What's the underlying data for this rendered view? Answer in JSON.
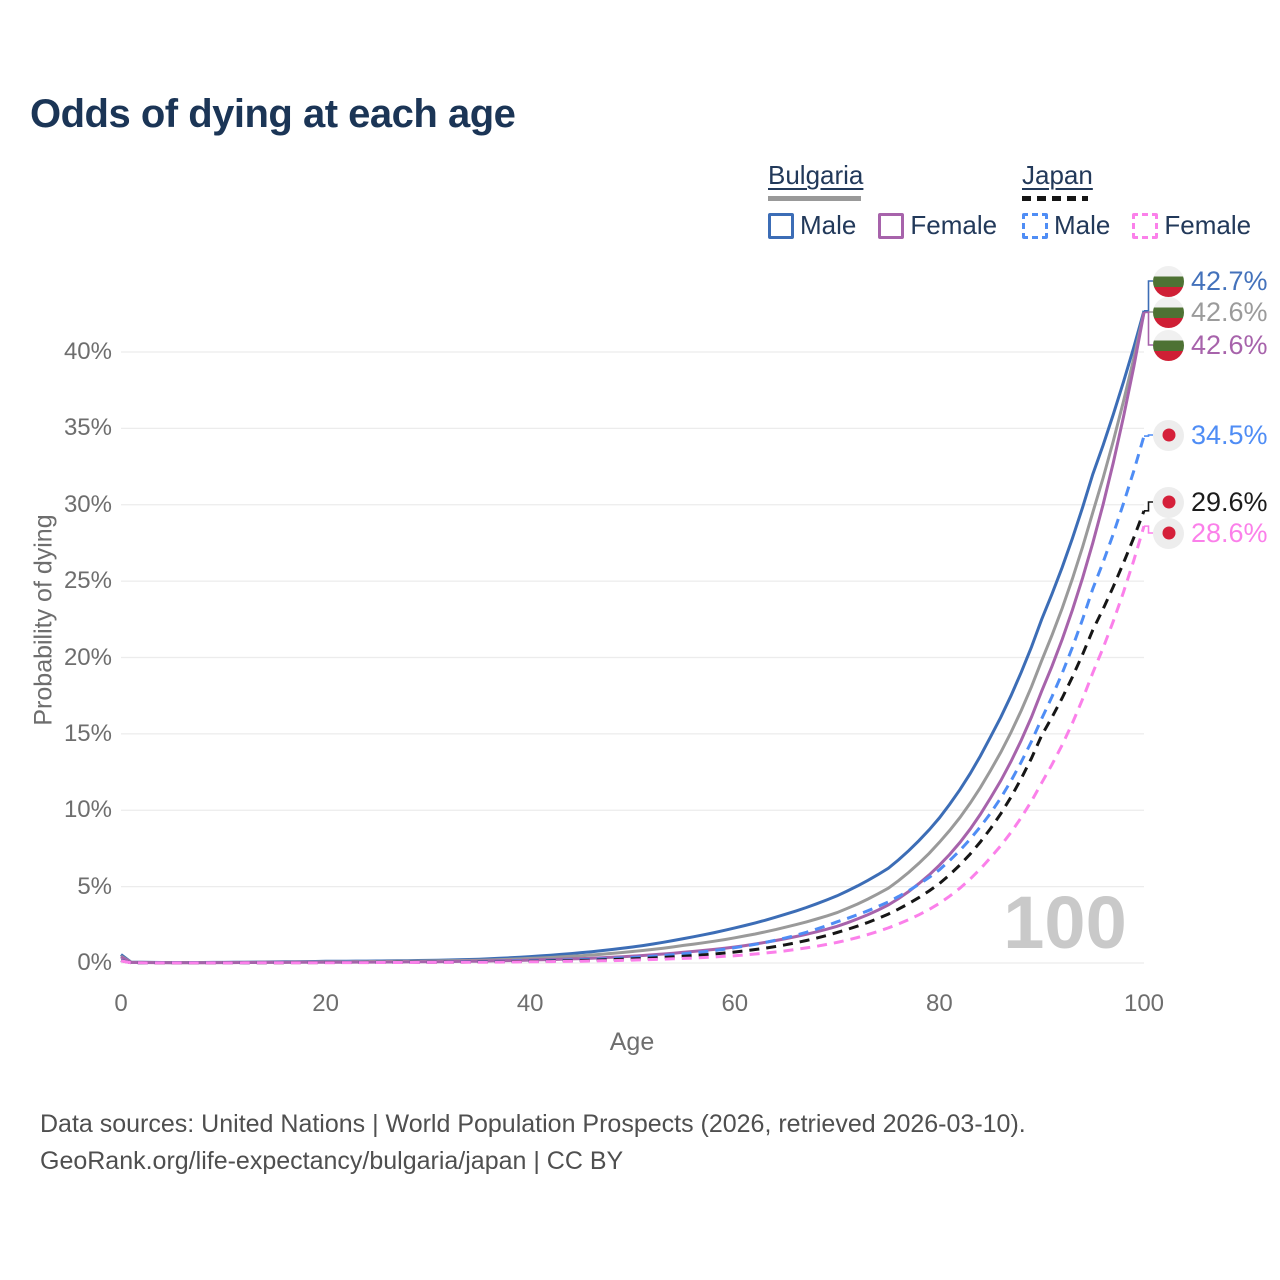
{
  "title": "Odds of dying at each age",
  "legend": {
    "groups": [
      {
        "label": "Bulgaria",
        "line_style": "solid",
        "swatch_color": "#999999",
        "items": [
          {
            "label": "Male",
            "color": "#3c6db6"
          },
          {
            "label": "Female",
            "color": "#a763ab"
          }
        ]
      },
      {
        "label": "Japan",
        "line_style": "dashed",
        "swatch_color": "#151515",
        "items": [
          {
            "label": "Male",
            "color": "#4f8df5"
          },
          {
            "label": "Female",
            "color": "#fb80ea"
          }
        ]
      }
    ]
  },
  "chart_data": {
    "type": "line",
    "title": "Odds of dying at each age",
    "xlabel": "Age",
    "ylabel": "Probability of dying",
    "xlim": [
      0,
      100
    ],
    "ylim_percent": [
      0,
      44
    ],
    "x_ticks": [
      "0",
      "20",
      "40",
      "60",
      "80",
      "100"
    ],
    "y_ticks": [
      "0%",
      "5%",
      "10%",
      "15%",
      "20%",
      "25%",
      "30%",
      "35%",
      "40%"
    ],
    "grid": "horizontal-only",
    "legend_position": "top-right",
    "ages": [
      0,
      1,
      5,
      10,
      15,
      20,
      25,
      30,
      35,
      40,
      45,
      50,
      55,
      60,
      65,
      70,
      75,
      80,
      85,
      90,
      95,
      100
    ],
    "series": [
      {
        "name": "Bulgaria Male",
        "country": "Bulgaria",
        "sex": "Male",
        "style": "solid",
        "color": "#3c6db6",
        "label_color": "#4472bb",
        "flag": "bulgaria",
        "end_label": "42.7%",
        "end_value_percent": 42.7,
        "values_percent": [
          0.55,
          0.05,
          0.03,
          0.04,
          0.07,
          0.11,
          0.13,
          0.17,
          0.25,
          0.42,
          0.68,
          1.05,
          1.6,
          2.3,
          3.2,
          4.4,
          6.2,
          9.5,
          14.8,
          22.5,
          32.0,
          42.7
        ]
      },
      {
        "name": "Bulgaria (both sexes)",
        "country": "Bulgaria",
        "sex": "Both",
        "style": "solid",
        "color": "#9a9a9a",
        "label_color": "#9b9b9b",
        "flag": "bulgaria",
        "end_label": "42.6%",
        "end_value_percent": 42.6,
        "values_percent": [
          0.45,
          0.045,
          0.025,
          0.03,
          0.05,
          0.08,
          0.1,
          0.13,
          0.18,
          0.3,
          0.48,
          0.75,
          1.15,
          1.65,
          2.35,
          3.3,
          4.9,
          7.9,
          12.6,
          19.8,
          29.5,
          42.6
        ]
      },
      {
        "name": "Bulgaria Female",
        "country": "Bulgaria",
        "sex": "Female",
        "style": "solid",
        "color": "#a763ab",
        "label_color": "#a763ab",
        "flag": "bulgaria",
        "end_label": "42.6%",
        "end_value_percent": 42.6,
        "values_percent": [
          0.4,
          0.04,
          0.02,
          0.025,
          0.04,
          0.05,
          0.06,
          0.08,
          0.12,
          0.19,
          0.29,
          0.45,
          0.7,
          1.05,
          1.6,
          2.4,
          3.8,
          6.4,
          10.8,
          17.8,
          27.5,
          42.6
        ]
      },
      {
        "name": "Japan Male",
        "country": "Japan",
        "sex": "Male",
        "style": "dashed",
        "color": "#4f8df5",
        "label_color": "#4f8df5",
        "flag": "japan",
        "end_label": "34.5%",
        "end_value_percent": 34.5,
        "values_percent": [
          0.18,
          0.015,
          0.01,
          0.012,
          0.03,
          0.04,
          0.05,
          0.06,
          0.09,
          0.14,
          0.22,
          0.36,
          0.6,
          1.0,
          1.65,
          2.7,
          4.0,
          6.1,
          9.8,
          16.0,
          24.5,
          34.5
        ]
      },
      {
        "name": "Japan (both sexes)",
        "country": "Japan",
        "sex": "Both",
        "style": "dashed",
        "color": "#161616",
        "label_color": "#1c1c1c",
        "flag": "japan",
        "end_label": "29.6%",
        "end_value_percent": 29.6,
        "values_percent": [
          0.16,
          0.014,
          0.008,
          0.01,
          0.02,
          0.03,
          0.04,
          0.05,
          0.07,
          0.11,
          0.17,
          0.27,
          0.44,
          0.72,
          1.2,
          2.0,
          3.2,
          5.2,
          8.8,
          14.9,
          21.8,
          29.6
        ]
      },
      {
        "name": "Japan Female",
        "country": "Japan",
        "sex": "Female",
        "style": "dashed",
        "color": "#fb80ea",
        "label_color": "#fb80ea",
        "flag": "japan",
        "end_label": "28.6%",
        "end_value_percent": 28.6,
        "values_percent": [
          0.14,
          0.012,
          0.007,
          0.008,
          0.015,
          0.02,
          0.03,
          0.04,
          0.05,
          0.08,
          0.12,
          0.19,
          0.3,
          0.48,
          0.8,
          1.35,
          2.3,
          3.9,
          6.9,
          11.8,
          19.0,
          28.6
        ]
      }
    ],
    "age_counter_watermark": "100"
  },
  "flag_colors": {
    "bulgaria": {
      "white": "#f0f0f0",
      "green": "#4e7234",
      "red": "#cf1f35"
    },
    "japan": {
      "background": "#ededed",
      "sun": "#d5203a"
    }
  },
  "footer": {
    "line1": "Data sources: United Nations | World Population Prospects (2026, retrieved 2026-03-10).",
    "line2": "GeoRank.org/life-expectancy/bulgaria/japan | CC BY"
  }
}
